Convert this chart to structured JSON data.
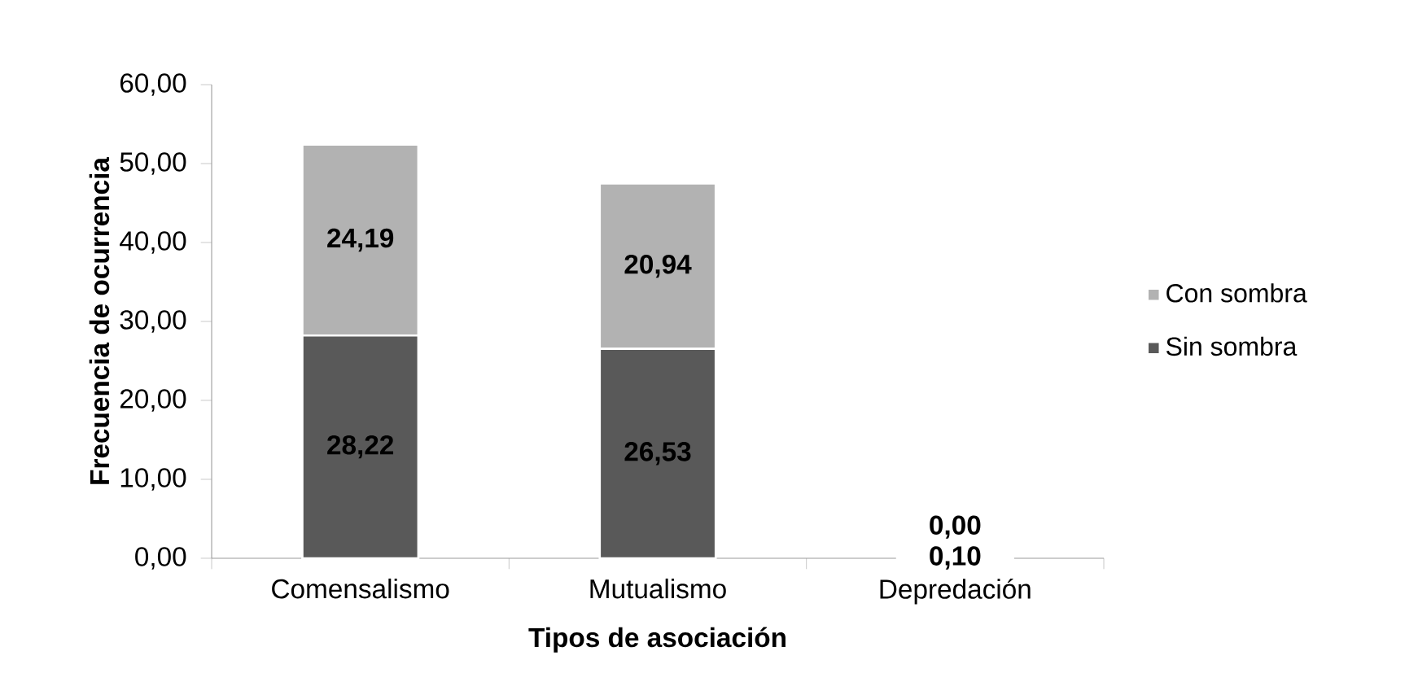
{
  "chart_data": {
    "type": "bar",
    "stacked": true,
    "xlabel": "Tipos de asociación",
    "ylabel": "Frecuencia de ocurrencia",
    "categories": [
      "Comensalismo",
      "Mutualismo",
      "Depredación"
    ],
    "series": [
      {
        "name": "Sin sombra",
        "color": "#595959",
        "values": [
          28.22,
          26.53,
          0.1
        ],
        "value_labels": [
          "28,22",
          "26,53",
          "0,10"
        ]
      },
      {
        "name": "Con sombra",
        "color": "#b2b2b2",
        "values": [
          24.19,
          20.94,
          0.0
        ],
        "value_labels": [
          "24,19",
          "20,94",
          "0,00"
        ]
      }
    ],
    "ylim": [
      0,
      60
    ],
    "yticks": [
      {
        "value": 0,
        "label": "0,00"
      },
      {
        "value": 10,
        "label": "10,00"
      },
      {
        "value": 20,
        "label": "20,00"
      },
      {
        "value": 30,
        "label": "30,00"
      },
      {
        "value": 40,
        "label": "40,00"
      },
      {
        "value": 50,
        "label": "50,00"
      },
      {
        "value": 60,
        "label": "60,00"
      }
    ],
    "grid": false,
    "legend": "right"
  }
}
